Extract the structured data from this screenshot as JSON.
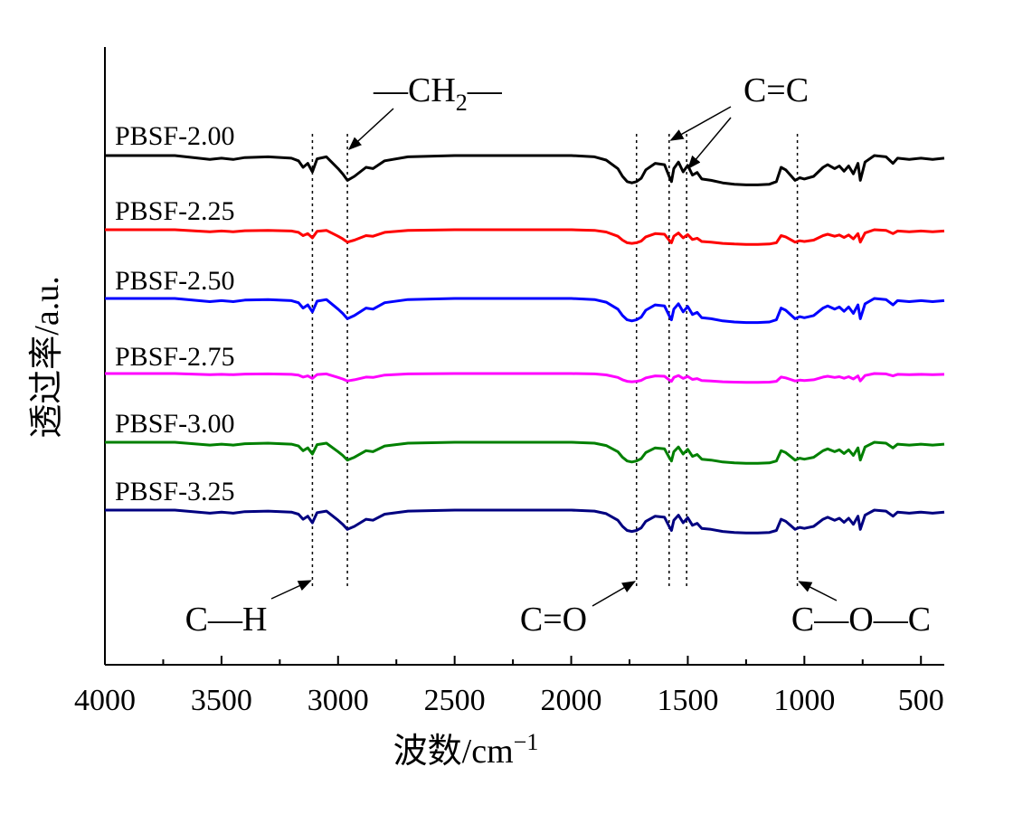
{
  "chart_data": {
    "type": "line",
    "xlabel": "波数/cm",
    "xlabel_sup": "−1",
    "ylabel": "透过率/a.u.",
    "xlim": [
      4000,
      400
    ],
    "x_ticks": [
      "4000",
      "3500",
      "3000",
      "2500",
      "2000",
      "1500",
      "1000",
      "500"
    ],
    "y_ticks_shown": false,
    "grid": false,
    "x": [
      4000,
      3700,
      3550,
      3500,
      3450,
      3400,
      3300,
      3200,
      3170,
      3150,
      3130,
      3110,
      3090,
      3050,
      3000,
      2980,
      2960,
      2930,
      2880,
      2850,
      2800,
      2700,
      2500,
      2000,
      1900,
      1850,
      1800,
      1780,
      1760,
      1740,
      1720,
      1700,
      1680,
      1640,
      1600,
      1580,
      1570,
      1560,
      1540,
      1520,
      1500,
      1480,
      1460,
      1440,
      1400,
      1350,
      1300,
      1250,
      1200,
      1150,
      1120,
      1100,
      1080,
      1060,
      1040,
      1020,
      1000,
      960,
      920,
      900,
      870,
      850,
      830,
      810,
      790,
      770,
      760,
      740,
      700,
      650,
      620,
      600,
      550,
      500,
      450,
      400
    ],
    "series": [
      {
        "name": "PBSF-2.00",
        "color": "#000000",
        "offset": 0,
        "scale": 1.0,
        "values": [
          100,
          100,
          94,
          96,
          94,
          97,
          98,
          96,
          92,
          82,
          88,
          75,
          95,
          98,
          80,
          72,
          62,
          68,
          82,
          80,
          92,
          98,
          100,
          100,
          98,
          93,
          80,
          68,
          60,
          58,
          60,
          65,
          78,
          88,
          86,
          68,
          60,
          80,
          90,
          75,
          85,
          70,
          74,
          64,
          62,
          58,
          56,
          55,
          55,
          56,
          60,
          82,
          78,
          70,
          62,
          66,
          64,
          68,
          82,
          86,
          80,
          84,
          76,
          84,
          72,
          88,
          62,
          90,
          100,
          98,
          88,
          96,
          94,
          96,
          94,
          96
        ]
      },
      {
        "name": "PBSF-2.25",
        "color": "#ff0000",
        "offset": 0,
        "scale": 0.5,
        "values": [
          100,
          100,
          94,
          96,
          94,
          97,
          98,
          96,
          92,
          82,
          88,
          75,
          95,
          98,
          80,
          72,
          62,
          68,
          82,
          80,
          92,
          98,
          100,
          100,
          98,
          93,
          80,
          68,
          60,
          58,
          60,
          65,
          78,
          88,
          86,
          68,
          60,
          80,
          90,
          75,
          85,
          70,
          74,
          64,
          62,
          58,
          56,
          55,
          55,
          56,
          60,
          82,
          78,
          70,
          62,
          66,
          64,
          68,
          82,
          86,
          80,
          84,
          76,
          84,
          72,
          88,
          62,
          90,
          100,
          98,
          88,
          96,
          94,
          96,
          94,
          96
        ]
      },
      {
        "name": "PBSF-2.50",
        "color": "#0000ff",
        "offset": 0,
        "scale": 0.82,
        "values": [
          100,
          100,
          94,
          96,
          94,
          97,
          98,
          96,
          92,
          82,
          88,
          75,
          95,
          98,
          80,
          72,
          62,
          68,
          82,
          80,
          92,
          98,
          100,
          100,
          98,
          93,
          80,
          68,
          60,
          58,
          60,
          65,
          78,
          88,
          86,
          68,
          60,
          80,
          90,
          75,
          85,
          70,
          74,
          64,
          62,
          58,
          56,
          55,
          55,
          56,
          60,
          82,
          78,
          70,
          62,
          66,
          64,
          68,
          82,
          86,
          80,
          84,
          76,
          84,
          72,
          88,
          62,
          90,
          100,
          98,
          88,
          96,
          94,
          96,
          94,
          96
        ]
      },
      {
        "name": "PBSF-2.75",
        "color": "#ff00ff",
        "offset": 0,
        "scale": 0.3,
        "values": [
          100,
          100,
          94,
          96,
          94,
          97,
          98,
          96,
          92,
          82,
          88,
          75,
          95,
          98,
          80,
          72,
          62,
          68,
          82,
          80,
          92,
          98,
          100,
          100,
          98,
          93,
          80,
          68,
          60,
          58,
          60,
          65,
          78,
          88,
          86,
          68,
          60,
          80,
          90,
          75,
          85,
          70,
          74,
          64,
          62,
          58,
          56,
          55,
          55,
          56,
          60,
          82,
          78,
          70,
          62,
          66,
          64,
          68,
          82,
          86,
          80,
          84,
          76,
          84,
          72,
          88,
          62,
          90,
          100,
          98,
          88,
          96,
          94,
          96,
          94,
          96
        ]
      },
      {
        "name": "PBSF-3.00",
        "color": "#008000",
        "offset": 0,
        "scale": 0.72,
        "values": [
          100,
          100,
          94,
          96,
          94,
          97,
          98,
          96,
          92,
          82,
          88,
          75,
          95,
          98,
          80,
          72,
          62,
          68,
          82,
          80,
          92,
          98,
          100,
          100,
          98,
          93,
          80,
          68,
          60,
          58,
          60,
          65,
          78,
          88,
          86,
          68,
          60,
          80,
          90,
          75,
          85,
          70,
          74,
          64,
          62,
          58,
          56,
          55,
          55,
          56,
          60,
          82,
          78,
          70,
          62,
          66,
          64,
          68,
          82,
          86,
          80,
          84,
          76,
          84,
          72,
          88,
          62,
          90,
          100,
          98,
          88,
          96,
          94,
          96,
          94,
          96
        ]
      },
      {
        "name": "PBSF-3.25",
        "color": "#000080",
        "offset": 0,
        "scale": 0.78,
        "values": [
          100,
          100,
          94,
          96,
          94,
          97,
          98,
          96,
          92,
          82,
          88,
          75,
          95,
          98,
          80,
          72,
          62,
          68,
          82,
          80,
          92,
          98,
          100,
          100,
          98,
          93,
          80,
          68,
          60,
          58,
          60,
          65,
          78,
          88,
          86,
          68,
          60,
          80,
          90,
          75,
          85,
          70,
          74,
          64,
          62,
          58,
          56,
          55,
          55,
          56,
          60,
          82,
          78,
          70,
          62,
          66,
          64,
          68,
          82,
          86,
          80,
          84,
          76,
          84,
          72,
          88,
          62,
          90,
          100,
          98,
          88,
          96,
          94,
          96,
          94,
          96
        ]
      }
    ],
    "reference_lines": [
      3110,
      2960,
      1720,
      1580,
      1505,
      1030
    ],
    "annotations": [
      {
        "text": "C—H",
        "x": 3110
      },
      {
        "text": "—CH",
        "sub": "2",
        "suffix": "—",
        "x": 2960
      },
      {
        "text": "C=O",
        "x": 1720
      },
      {
        "text": "C=C",
        "x": 1580
      },
      {
        "text": "C—O—C",
        "x": 1030
      }
    ]
  }
}
